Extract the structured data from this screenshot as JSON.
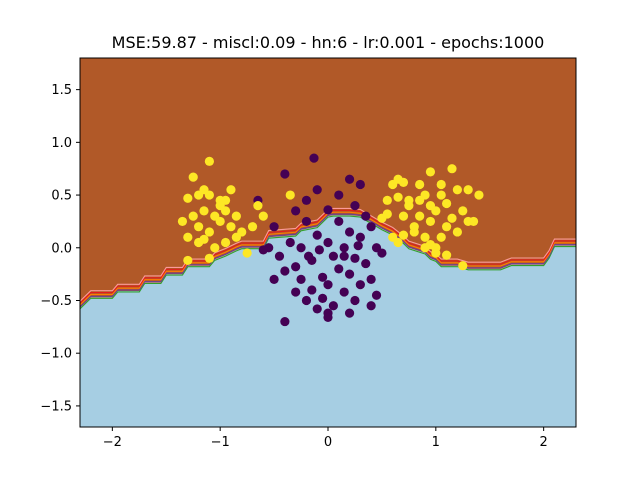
{
  "chart_data": {
    "type": "scatter",
    "title": "MSE:59.87 - miscl:0.09 - hn:6 - lr:0.001 - epochs:1000",
    "xlabel": "",
    "ylabel": "",
    "xlim": [
      -2.3,
      2.3
    ],
    "ylim": [
      -1.7,
      1.8
    ],
    "xticks": [
      -2,
      -1,
      0,
      1,
      2
    ],
    "xtick_labels": [
      "−2",
      "−1",
      "0",
      "1",
      "2"
    ],
    "yticks": [
      -1.5,
      -1.0,
      -0.5,
      0.0,
      0.5,
      1.0,
      1.5
    ],
    "ytick_labels": [
      "−1.5",
      "−1.0",
      "−0.5",
      "0.0",
      "0.5",
      "1.0",
      "1.5"
    ],
    "grid": false,
    "colors": {
      "region_upper": "#b15928",
      "region_lower": "#a6cee3",
      "class_0": "#440154",
      "class_1": "#fde725",
      "contours": [
        "#33a02c",
        "#6a3d9a",
        "#ff7f00",
        "#e31a1c",
        "#fb9a99"
      ]
    },
    "decision_boundary": {
      "x": [
        -2.3,
        -2.2,
        -2.0,
        -1.95,
        -1.75,
        -1.7,
        -1.55,
        -1.5,
        -1.35,
        -1.3,
        -1.1,
        -1.05,
        -0.95,
        -0.85,
        -0.8,
        -0.6,
        -0.55,
        -0.3,
        -0.25,
        -0.1,
        0.0,
        0.05,
        0.2,
        0.3,
        0.5,
        0.6,
        0.7,
        0.75,
        0.9,
        0.95,
        1.0,
        1.05,
        1.2,
        1.3,
        1.6,
        1.7,
        2.0,
        2.05,
        2.1,
        2.3
      ],
      "y": [
        -0.57,
        -0.47,
        -0.47,
        -0.41,
        -0.41,
        -0.33,
        -0.33,
        -0.25,
        -0.25,
        -0.17,
        -0.17,
        -0.11,
        -0.07,
        -0.02,
        0.0,
        0.0,
        0.1,
        0.12,
        0.17,
        0.2,
        0.3,
        0.31,
        0.31,
        0.3,
        0.18,
        0.13,
        0.05,
        0.0,
        -0.05,
        -0.1,
        -0.12,
        -0.17,
        -0.17,
        -0.2,
        -0.2,
        -0.16,
        -0.16,
        -0.09,
        0.02,
        0.02
      ]
    },
    "series": [
      {
        "class": 0,
        "points": [
          [
            -0.13,
            0.85
          ],
          [
            0.2,
            0.65
          ],
          [
            -0.4,
            0.7
          ],
          [
            0.3,
            0.6
          ],
          [
            -0.1,
            0.55
          ],
          [
            0.1,
            0.5
          ],
          [
            -0.2,
            0.45
          ],
          [
            0.25,
            0.4
          ],
          [
            -0.3,
            0.35
          ],
          [
            0.0,
            0.36
          ],
          [
            -0.65,
            0.45
          ],
          [
            0.35,
            0.3
          ],
          [
            -0.2,
            0.25
          ],
          [
            0.1,
            0.25
          ],
          [
            0.4,
            0.2
          ],
          [
            -0.5,
            0.2
          ],
          [
            0.2,
            0.15
          ],
          [
            -0.1,
            0.12
          ],
          [
            0.3,
            0.1
          ],
          [
            -0.35,
            0.05
          ],
          [
            0.0,
            0.05
          ],
          [
            0.45,
            0.0
          ],
          [
            -0.25,
            0.0
          ],
          [
            0.15,
            0.0
          ],
          [
            -0.55,
            0.0
          ],
          [
            -0.6,
            -0.02
          ],
          [
            0.5,
            -0.05
          ],
          [
            -0.45,
            -0.08
          ],
          [
            0.05,
            -0.08
          ],
          [
            0.25,
            -0.1
          ],
          [
            -0.15,
            -0.12
          ],
          [
            0.35,
            -0.15
          ],
          [
            -0.3,
            -0.18
          ],
          [
            0.1,
            -0.2
          ],
          [
            -0.4,
            -0.22
          ],
          [
            0.2,
            -0.25
          ],
          [
            -0.05,
            -0.28
          ],
          [
            0.4,
            -0.3
          ],
          [
            -0.25,
            -0.3
          ],
          [
            -0.5,
            -0.3
          ],
          [
            0.0,
            -0.35
          ],
          [
            0.3,
            -0.35
          ],
          [
            -0.15,
            -0.4
          ],
          [
            0.15,
            -0.42
          ],
          [
            -0.3,
            -0.42
          ],
          [
            0.45,
            -0.45
          ],
          [
            -0.05,
            -0.48
          ],
          [
            0.25,
            -0.5
          ],
          [
            -0.2,
            -0.5
          ],
          [
            0.05,
            -0.55
          ],
          [
            0.4,
            -0.55
          ],
          [
            -0.1,
            -0.58
          ],
          [
            0.2,
            -0.62
          ],
          [
            0.0,
            -0.62
          ],
          [
            -0.4,
            -0.7
          ],
          [
            0.0,
            -0.66
          ],
          [
            0.15,
            -0.08
          ],
          [
            -0.08,
            -0.02
          ],
          [
            0.28,
            0.02
          ],
          [
            -0.18,
            -0.08
          ]
        ]
      },
      {
        "class": 1,
        "points": [
          [
            -1.1,
            0.82
          ],
          [
            -1.25,
            0.67
          ],
          [
            -1.3,
            0.47
          ],
          [
            -1.2,
            0.5
          ],
          [
            -1.1,
            0.5
          ],
          [
            -1.0,
            0.45
          ],
          [
            -0.9,
            0.55
          ],
          [
            -1.15,
            0.35
          ],
          [
            -1.05,
            0.3
          ],
          [
            -0.95,
            0.35
          ],
          [
            -0.85,
            0.3
          ],
          [
            -1.25,
            0.3
          ],
          [
            -1.35,
            0.25
          ],
          [
            -1.0,
            0.25
          ],
          [
            -0.9,
            0.2
          ],
          [
            -1.2,
            0.2
          ],
          [
            -1.1,
            0.15
          ],
          [
            -0.8,
            0.15
          ],
          [
            -1.3,
            0.1
          ],
          [
            -1.15,
            0.08
          ],
          [
            -0.95,
            0.05
          ],
          [
            -1.05,
            0.0
          ],
          [
            -1.2,
            0.05
          ],
          [
            -0.7,
            0.2
          ],
          [
            -0.65,
            0.4
          ],
          [
            -0.95,
            0.45
          ],
          [
            -1.3,
            -0.12
          ],
          [
            -1.1,
            -0.1
          ],
          [
            -0.75,
            -0.05
          ],
          [
            -0.85,
            0.1
          ],
          [
            -0.6,
            0.3
          ],
          [
            -1.15,
            0.55
          ],
          [
            -1.0,
            0.4
          ],
          [
            -0.35,
            0.5
          ],
          [
            1.15,
            0.75
          ],
          [
            0.95,
            0.72
          ],
          [
            0.65,
            0.65
          ],
          [
            0.7,
            0.62
          ],
          [
            0.6,
            0.6
          ],
          [
            0.85,
            0.6
          ],
          [
            1.2,
            0.55
          ],
          [
            1.3,
            0.55
          ],
          [
            1.05,
            0.5
          ],
          [
            0.9,
            0.5
          ],
          [
            0.65,
            0.48
          ],
          [
            0.75,
            0.45
          ],
          [
            0.95,
            0.4
          ],
          [
            1.1,
            0.42
          ],
          [
            1.25,
            0.35
          ],
          [
            1.0,
            0.35
          ],
          [
            0.85,
            0.3
          ],
          [
            0.7,
            0.3
          ],
          [
            0.55,
            0.32
          ],
          [
            0.5,
            0.28
          ],
          [
            1.15,
            0.28
          ],
          [
            0.95,
            0.25
          ],
          [
            0.8,
            0.2
          ],
          [
            1.1,
            0.2
          ],
          [
            1.3,
            0.25
          ],
          [
            1.2,
            0.15
          ],
          [
            0.7,
            0.12
          ],
          [
            0.9,
            0.1
          ],
          [
            1.05,
            0.1
          ],
          [
            0.65,
            0.05
          ],
          [
            0.95,
            0.03
          ],
          [
            0.9,
            0.0
          ],
          [
            1.0,
            0.0
          ],
          [
            1.1,
            -0.07
          ],
          [
            1.25,
            -0.17
          ],
          [
            1.0,
            -0.05
          ],
          [
            0.8,
            0.15
          ],
          [
            1.35,
            0.25
          ],
          [
            1.4,
            0.5
          ],
          [
            0.6,
            0.1
          ],
          [
            0.85,
            0.45
          ],
          [
            1.05,
            0.6
          ],
          [
            0.75,
            0.4
          ],
          [
            0.55,
            0.45
          ]
        ]
      }
    ]
  }
}
